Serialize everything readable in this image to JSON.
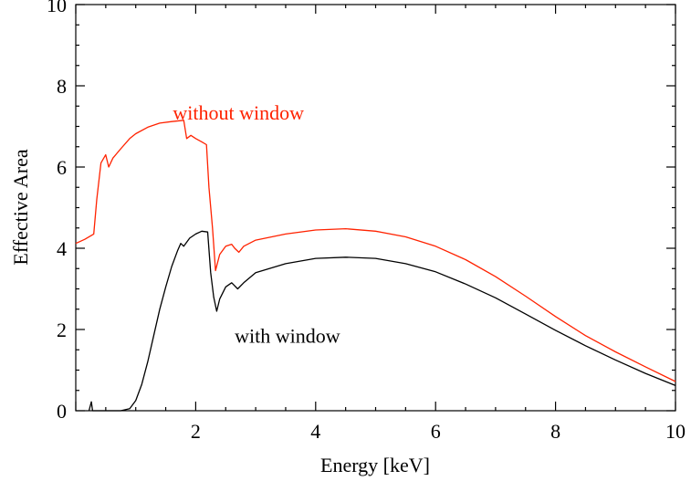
{
  "chart_data": {
    "type": "line",
    "title": "",
    "xlabel": "Energy [keV]",
    "ylabel": "Effective Area",
    "xlim": [
      0,
      10
    ],
    "ylim": [
      0,
      10
    ],
    "grid": false,
    "x_ticks": [
      2,
      4,
      6,
      8,
      10
    ],
    "y_ticks": [
      0,
      2,
      4,
      6,
      8,
      10
    ],
    "annotations": [
      {
        "text": "without window",
        "x": 1.62,
        "y": 7.35,
        "color": "#ff2200"
      },
      {
        "text": "with window",
        "x": 2.65,
        "y": 1.85,
        "color": "#000000"
      }
    ],
    "series": [
      {
        "color": "#ff2200",
        "points": [
          [
            0.0,
            4.12
          ],
          [
            0.15,
            4.22
          ],
          [
            0.3,
            4.35
          ],
          [
            0.35,
            5.2
          ],
          [
            0.42,
            6.1
          ],
          [
            0.5,
            6.3
          ],
          [
            0.55,
            6.0
          ],
          [
            0.62,
            6.22
          ],
          [
            0.75,
            6.45
          ],
          [
            0.9,
            6.7
          ],
          [
            1.0,
            6.82
          ],
          [
            1.2,
            6.98
          ],
          [
            1.4,
            7.08
          ],
          [
            1.6,
            7.12
          ],
          [
            1.8,
            7.15
          ],
          [
            1.85,
            6.7
          ],
          [
            1.92,
            6.78
          ],
          [
            2.0,
            6.7
          ],
          [
            2.1,
            6.62
          ],
          [
            2.18,
            6.55
          ],
          [
            2.22,
            5.5
          ],
          [
            2.28,
            4.5
          ],
          [
            2.33,
            3.45
          ],
          [
            2.4,
            3.85
          ],
          [
            2.5,
            4.05
          ],
          [
            2.6,
            4.1
          ],
          [
            2.65,
            4.0
          ],
          [
            2.72,
            3.9
          ],
          [
            2.8,
            4.05
          ],
          [
            3.0,
            4.2
          ],
          [
            3.5,
            4.35
          ],
          [
            4.0,
            4.45
          ],
          [
            4.5,
            4.48
          ],
          [
            5.0,
            4.42
          ],
          [
            5.5,
            4.28
          ],
          [
            6.0,
            4.05
          ],
          [
            6.5,
            3.72
          ],
          [
            7.0,
            3.3
          ],
          [
            7.5,
            2.82
          ],
          [
            8.0,
            2.32
          ],
          [
            8.5,
            1.85
          ],
          [
            9.0,
            1.45
          ],
          [
            9.5,
            1.08
          ],
          [
            10.0,
            0.72
          ]
        ]
      },
      {
        "color": "#000000",
        "points": [
          [
            0.22,
            0.0
          ],
          [
            0.26,
            0.22
          ],
          [
            0.28,
            0.0
          ],
          [
            0.75,
            0.0
          ],
          [
            0.9,
            0.05
          ],
          [
            1.0,
            0.25
          ],
          [
            1.1,
            0.65
          ],
          [
            1.2,
            1.2
          ],
          [
            1.3,
            1.85
          ],
          [
            1.4,
            2.5
          ],
          [
            1.5,
            3.05
          ],
          [
            1.6,
            3.55
          ],
          [
            1.7,
            3.95
          ],
          [
            1.75,
            4.12
          ],
          [
            1.8,
            4.05
          ],
          [
            1.9,
            4.25
          ],
          [
            2.0,
            4.35
          ],
          [
            2.1,
            4.42
          ],
          [
            2.2,
            4.4
          ],
          [
            2.25,
            3.4
          ],
          [
            2.3,
            2.8
          ],
          [
            2.35,
            2.45
          ],
          [
            2.4,
            2.75
          ],
          [
            2.5,
            3.05
          ],
          [
            2.6,
            3.15
          ],
          [
            2.7,
            3.0
          ],
          [
            2.8,
            3.15
          ],
          [
            3.0,
            3.4
          ],
          [
            3.5,
            3.62
          ],
          [
            4.0,
            3.75
          ],
          [
            4.5,
            3.78
          ],
          [
            5.0,
            3.75
          ],
          [
            5.5,
            3.62
          ],
          [
            6.0,
            3.42
          ],
          [
            6.5,
            3.12
          ],
          [
            7.0,
            2.78
          ],
          [
            7.5,
            2.38
          ],
          [
            8.0,
            1.98
          ],
          [
            8.5,
            1.6
          ],
          [
            9.0,
            1.25
          ],
          [
            9.5,
            0.92
          ],
          [
            10.0,
            0.62
          ]
        ]
      }
    ]
  }
}
